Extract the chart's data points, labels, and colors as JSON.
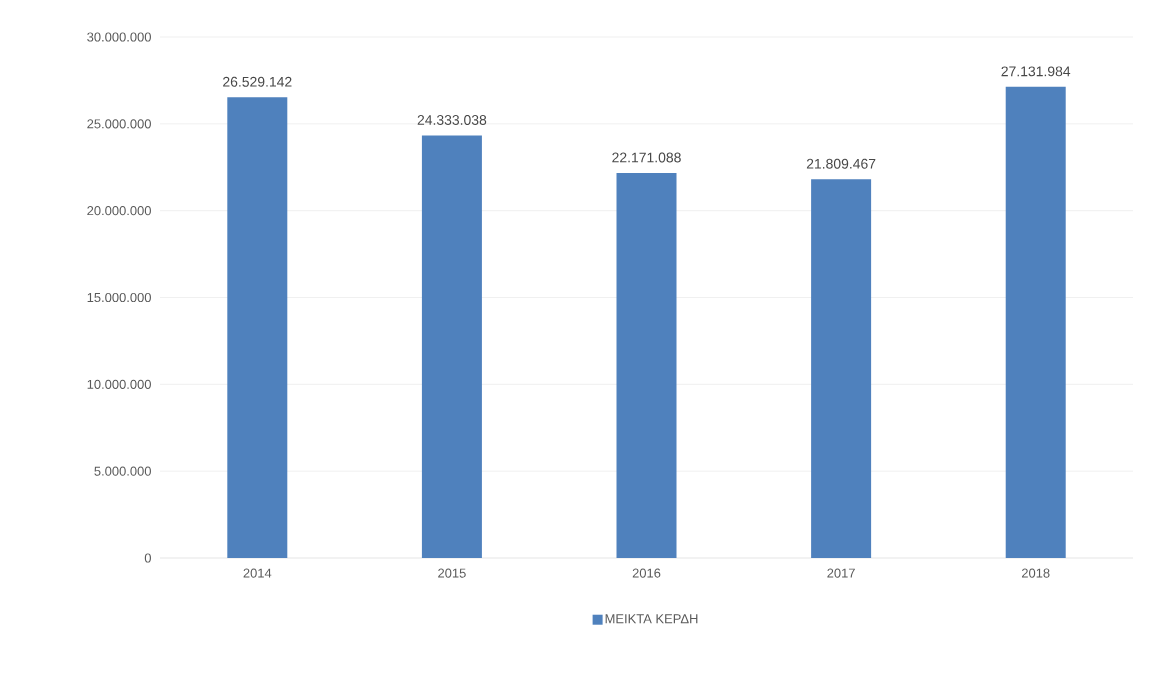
{
  "chart_data": {
    "type": "bar",
    "categories": [
      "2014",
      "2015",
      "2016",
      "2017",
      "2018"
    ],
    "series": [
      {
        "name": "ΜΕΙΚΤΑ ΚΕΡΔΗ",
        "color": "#4f81bd",
        "values": [
          26529142,
          24333038,
          22171088,
          21809467,
          27131984
        ],
        "value_labels": [
          "26.529.142",
          "24.333.038",
          "22.171.088",
          "21.809.467",
          "27.131.984"
        ]
      }
    ],
    "ylim": [
      0,
      30000000
    ],
    "yticks": [
      {
        "value": 0,
        "label": "0"
      },
      {
        "value": 5000000,
        "label": "5.000.000"
      },
      {
        "value": 10000000,
        "label": "10.000.000"
      },
      {
        "value": 15000000,
        "label": "15.000.000"
      },
      {
        "value": 20000000,
        "label": "20.000.000"
      },
      {
        "value": 25000000,
        "label": "25.000.000"
      },
      {
        "value": 30000000,
        "label": "30.000.000"
      }
    ],
    "grid": "y",
    "legend": "bottom"
  }
}
